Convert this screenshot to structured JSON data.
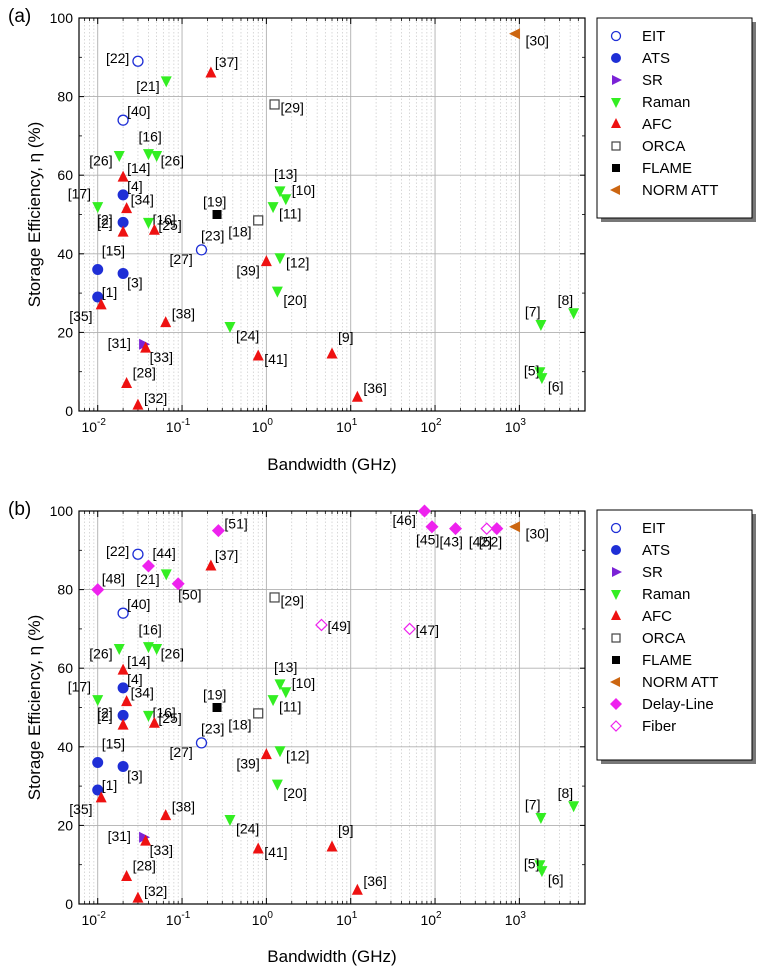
{
  "figure": {
    "panels": [
      "(a)",
      "(b)"
    ]
  },
  "colors": {
    "EIT": "#1f2fd6",
    "ATS": "#1f2fd6",
    "SR": "#7b22d6",
    "Raman": "#33ee22",
    "AFC": "#ee1111",
    "ORCA": "#444444",
    "FLAME": "#000000",
    "NORM ATT": "#cc6611",
    "Delay-Line": "#ee22ee",
    "Fiber": "#ee22ee"
  },
  "chart_data": [
    {
      "type": "scatter",
      "panel": "(a)",
      "xlabel": "Bandwidth (GHz)",
      "ylabel": "Storage Efficiency, η (%)",
      "xscale": "log",
      "xlim": [
        0.006,
        6000
      ],
      "ylim": [
        0,
        100
      ],
      "xticks": [
        "10^-2",
        "10^-1",
        "10^0",
        "10^1",
        "10^2",
        "10^3"
      ],
      "yticks": [
        "0",
        "20",
        "40",
        "60",
        "80",
        "100"
      ],
      "legend_position": "right",
      "legend": [
        "EIT",
        "ATS",
        "SR",
        "Raman",
        "AFC",
        "ORCA",
        "FLAME",
        "NORM ATT"
      ],
      "series": [
        {
          "name": "EIT",
          "marker": "circle-open",
          "points": [
            {
              "x": 0.03,
              "y": 89,
              "label": "[22]"
            },
            {
              "x": 0.02,
              "y": 74,
              "label": "[40]"
            },
            {
              "x": 0.17,
              "y": 41,
              "label": "[27]"
            }
          ]
        },
        {
          "name": "ATS",
          "marker": "circle-filled",
          "points": [
            {
              "x": 0.02,
              "y": 55,
              "label": "[4]"
            },
            {
              "x": 0.02,
              "y": 48,
              "label": "[2]"
            },
            {
              "x": 0.01,
              "y": 36,
              "label": "[15]"
            },
            {
              "x": 0.02,
              "y": 35,
              "label": "[3]"
            },
            {
              "x": 0.01,
              "y": 29,
              "label": "[1]"
            }
          ]
        },
        {
          "name": "SR",
          "marker": "triangle-right",
          "points": [
            {
              "x": 0.035,
              "y": 17,
              "label": "[31]"
            }
          ]
        },
        {
          "name": "Raman",
          "marker": "triangle-down",
          "points": [
            {
              "x": 0.065,
              "y": 84,
              "label": "[21]"
            },
            {
              "x": 0.018,
              "y": 65,
              "label": "[26]"
            },
            {
              "x": 0.04,
              "y": 65.5,
              "label": "[16]"
            },
            {
              "x": 0.05,
              "y": 65,
              "label": "[26]"
            },
            {
              "x": 0.01,
              "y": 52,
              "label": "[17]"
            },
            {
              "x": 0.04,
              "y": 48,
              "label": "[16]"
            },
            {
              "x": 1.45,
              "y": 56,
              "label": "[13]"
            },
            {
              "x": 1.7,
              "y": 54,
              "label": "[10]"
            },
            {
              "x": 1.2,
              "y": 52,
              "label": "[11]"
            },
            {
              "x": 1.45,
              "y": 39,
              "label": "[12]"
            },
            {
              "x": 1.35,
              "y": 30.5,
              "label": "[20]"
            },
            {
              "x": 0.37,
              "y": 21.5,
              "label": "[24]"
            },
            {
              "x": 1800,
              "y": 22,
              "label": "[7]"
            },
            {
              "x": 4400,
              "y": 25,
              "label": "[8]"
            },
            {
              "x": 1750,
              "y": 10,
              "label": "[5]"
            },
            {
              "x": 1850,
              "y": 8.5,
              "label": "[6]"
            }
          ]
        },
        {
          "name": "AFC",
          "marker": "triangle-up",
          "points": [
            {
              "x": 0.22,
              "y": 86,
              "label": "[37]"
            },
            {
              "x": 0.02,
              "y": 59.5,
              "label": "[14]"
            },
            {
              "x": 0.022,
              "y": 51.5,
              "label": "[34]"
            },
            {
              "x": 0.02,
              "y": 45.5,
              "label": "[2]"
            },
            {
              "x": 0.047,
              "y": 46,
              "label": "[25]"
            },
            {
              "x": 0.011,
              "y": 27,
              "label": "[35]"
            },
            {
              "x": 0.064,
              "y": 22.5,
              "label": "[38]"
            },
            {
              "x": 0.037,
              "y": 16,
              "label": "[33]"
            },
            {
              "x": 0.022,
              "y": 7,
              "label": "[28]"
            },
            {
              "x": 0.03,
              "y": 1.5,
              "label": "[32]"
            },
            {
              "x": 1.0,
              "y": 38,
              "label": "[39]"
            },
            {
              "x": 0.8,
              "y": 14,
              "label": "[41]"
            },
            {
              "x": 6.0,
              "y": 14.5,
              "label": "[9]"
            },
            {
              "x": 12.0,
              "y": 3.5,
              "label": "[36]"
            }
          ]
        },
        {
          "name": "ORCA",
          "marker": "square-open",
          "points": [
            {
              "x": 1.25,
              "y": 78,
              "label": "[29]"
            },
            {
              "x": 0.8,
              "y": 48.5,
              "label": "[18]"
            }
          ]
        },
        {
          "name": "FLAME",
          "marker": "square-filled",
          "points": [
            {
              "x": 0.26,
              "y": 50,
              "label": "[19]"
            }
          ]
        },
        {
          "name": "NORM ATT",
          "marker": "triangle-left",
          "points": [
            {
              "x": 900,
              "y": 96,
              "label": "[30]"
            }
          ]
        }
      ],
      "annotations": [
        "[23]"
      ]
    },
    {
      "type": "scatter",
      "panel": "(b)",
      "xlabel": "Bandwidth (GHz)",
      "ylabel": "Storage Efficiency, η (%)",
      "xscale": "log",
      "xlim": [
        0.006,
        6000
      ],
      "ylim": [
        0,
        100
      ],
      "xticks": [
        "10^-2",
        "10^-1",
        "10^0",
        "10^1",
        "10^2",
        "10^3"
      ],
      "yticks": [
        "0",
        "20",
        "40",
        "60",
        "80",
        "100"
      ],
      "legend_position": "right",
      "legend": [
        "EIT",
        "ATS",
        "SR",
        "Raman",
        "AFC",
        "ORCA",
        "FLAME",
        "NORM ATT",
        "Delay-Line",
        "Fiber"
      ],
      "series": [
        {
          "name": "EIT",
          "marker": "circle-open",
          "points": [
            {
              "x": 0.03,
              "y": 89,
              "label": "[22]"
            },
            {
              "x": 0.02,
              "y": 74,
              "label": "[40]"
            },
            {
              "x": 0.17,
              "y": 41,
              "label": "[27]"
            }
          ]
        },
        {
          "name": "ATS",
          "marker": "circle-filled",
          "points": [
            {
              "x": 0.02,
              "y": 55,
              "label": "[4]"
            },
            {
              "x": 0.02,
              "y": 48,
              "label": "[2]"
            },
            {
              "x": 0.01,
              "y": 36,
              "label": "[15]"
            },
            {
              "x": 0.02,
              "y": 35,
              "label": "[3]"
            },
            {
              "x": 0.01,
              "y": 29,
              "label": "[1]"
            }
          ]
        },
        {
          "name": "SR",
          "marker": "triangle-right",
          "points": [
            {
              "x": 0.035,
              "y": 17,
              "label": "[31]"
            }
          ]
        },
        {
          "name": "Raman",
          "marker": "triangle-down",
          "points": [
            {
              "x": 0.065,
              "y": 84,
              "label": "[21]"
            },
            {
              "x": 0.018,
              "y": 65,
              "label": "[26]"
            },
            {
              "x": 0.04,
              "y": 65.5,
              "label": "[16]"
            },
            {
              "x": 0.05,
              "y": 65,
              "label": "[26]"
            },
            {
              "x": 0.01,
              "y": 52,
              "label": "[17]"
            },
            {
              "x": 0.04,
              "y": 48,
              "label": "[16]"
            },
            {
              "x": 1.45,
              "y": 56,
              "label": "[13]"
            },
            {
              "x": 1.7,
              "y": 54,
              "label": "[10]"
            },
            {
              "x": 1.2,
              "y": 52,
              "label": "[11]"
            },
            {
              "x": 1.45,
              "y": 39,
              "label": "[12]"
            },
            {
              "x": 1.35,
              "y": 30.5,
              "label": "[20]"
            },
            {
              "x": 0.37,
              "y": 21.5,
              "label": "[24]"
            },
            {
              "x": 1800,
              "y": 22,
              "label": "[7]"
            },
            {
              "x": 4400,
              "y": 25,
              "label": "[8]"
            },
            {
              "x": 1750,
              "y": 10,
              "label": "[5]"
            },
            {
              "x": 1850,
              "y": 8.5,
              "label": "[6]"
            }
          ]
        },
        {
          "name": "AFC",
          "marker": "triangle-up",
          "points": [
            {
              "x": 0.22,
              "y": 86,
              "label": "[37]"
            },
            {
              "x": 0.02,
              "y": 59.5,
              "label": "[14]"
            },
            {
              "x": 0.022,
              "y": 51.5,
              "label": "[34]"
            },
            {
              "x": 0.02,
              "y": 45.5,
              "label": "[2]"
            },
            {
              "x": 0.047,
              "y": 46,
              "label": "[25]"
            },
            {
              "x": 0.011,
              "y": 27,
              "label": "[35]"
            },
            {
              "x": 0.064,
              "y": 22.5,
              "label": "[38]"
            },
            {
              "x": 0.037,
              "y": 16,
              "label": "[33]"
            },
            {
              "x": 0.022,
              "y": 7,
              "label": "[28]"
            },
            {
              "x": 0.03,
              "y": 1.5,
              "label": "[32]"
            },
            {
              "x": 1.0,
              "y": 38,
              "label": "[39]"
            },
            {
              "x": 0.8,
              "y": 14,
              "label": "[41]"
            },
            {
              "x": 6.0,
              "y": 14.5,
              "label": "[9]"
            },
            {
              "x": 12.0,
              "y": 3.5,
              "label": "[36]"
            }
          ]
        },
        {
          "name": "ORCA",
          "marker": "square-open",
          "points": [
            {
              "x": 1.25,
              "y": 78,
              "label": "[29]"
            },
            {
              "x": 0.8,
              "y": 48.5,
              "label": "[18]"
            }
          ]
        },
        {
          "name": "FLAME",
          "marker": "square-filled",
          "points": [
            {
              "x": 0.26,
              "y": 50,
              "label": "[19]"
            }
          ]
        },
        {
          "name": "NORM ATT",
          "marker": "triangle-left",
          "points": [
            {
              "x": 900,
              "y": 96,
              "label": "[30]"
            }
          ]
        },
        {
          "name": "Delay-Line",
          "marker": "diamond-filled",
          "points": [
            {
              "x": 0.27,
              "y": 95,
              "label": "[51]"
            },
            {
              "x": 0.04,
              "y": 86,
              "label": "[44]"
            },
            {
              "x": 0.01,
              "y": 80,
              "label": "[48]"
            },
            {
              "x": 0.09,
              "y": 81.5,
              "label": "[50]"
            },
            {
              "x": 75,
              "y": 100,
              "label": "[46]"
            },
            {
              "x": 92,
              "y": 96,
              "label": "[45]"
            },
            {
              "x": 175,
              "y": 95.5,
              "label": "[43]"
            },
            {
              "x": 540,
              "y": 95.5,
              "label": "[52]"
            }
          ]
        },
        {
          "name": "Fiber",
          "marker": "diamond-open",
          "points": [
            {
              "x": 4.5,
              "y": 71,
              "label": "[49]"
            },
            {
              "x": 50,
              "y": 70,
              "label": "[47]"
            },
            {
              "x": 410,
              "y": 95.5,
              "label": "[42]"
            }
          ]
        }
      ],
      "annotations": [
        "[23]"
      ]
    }
  ]
}
